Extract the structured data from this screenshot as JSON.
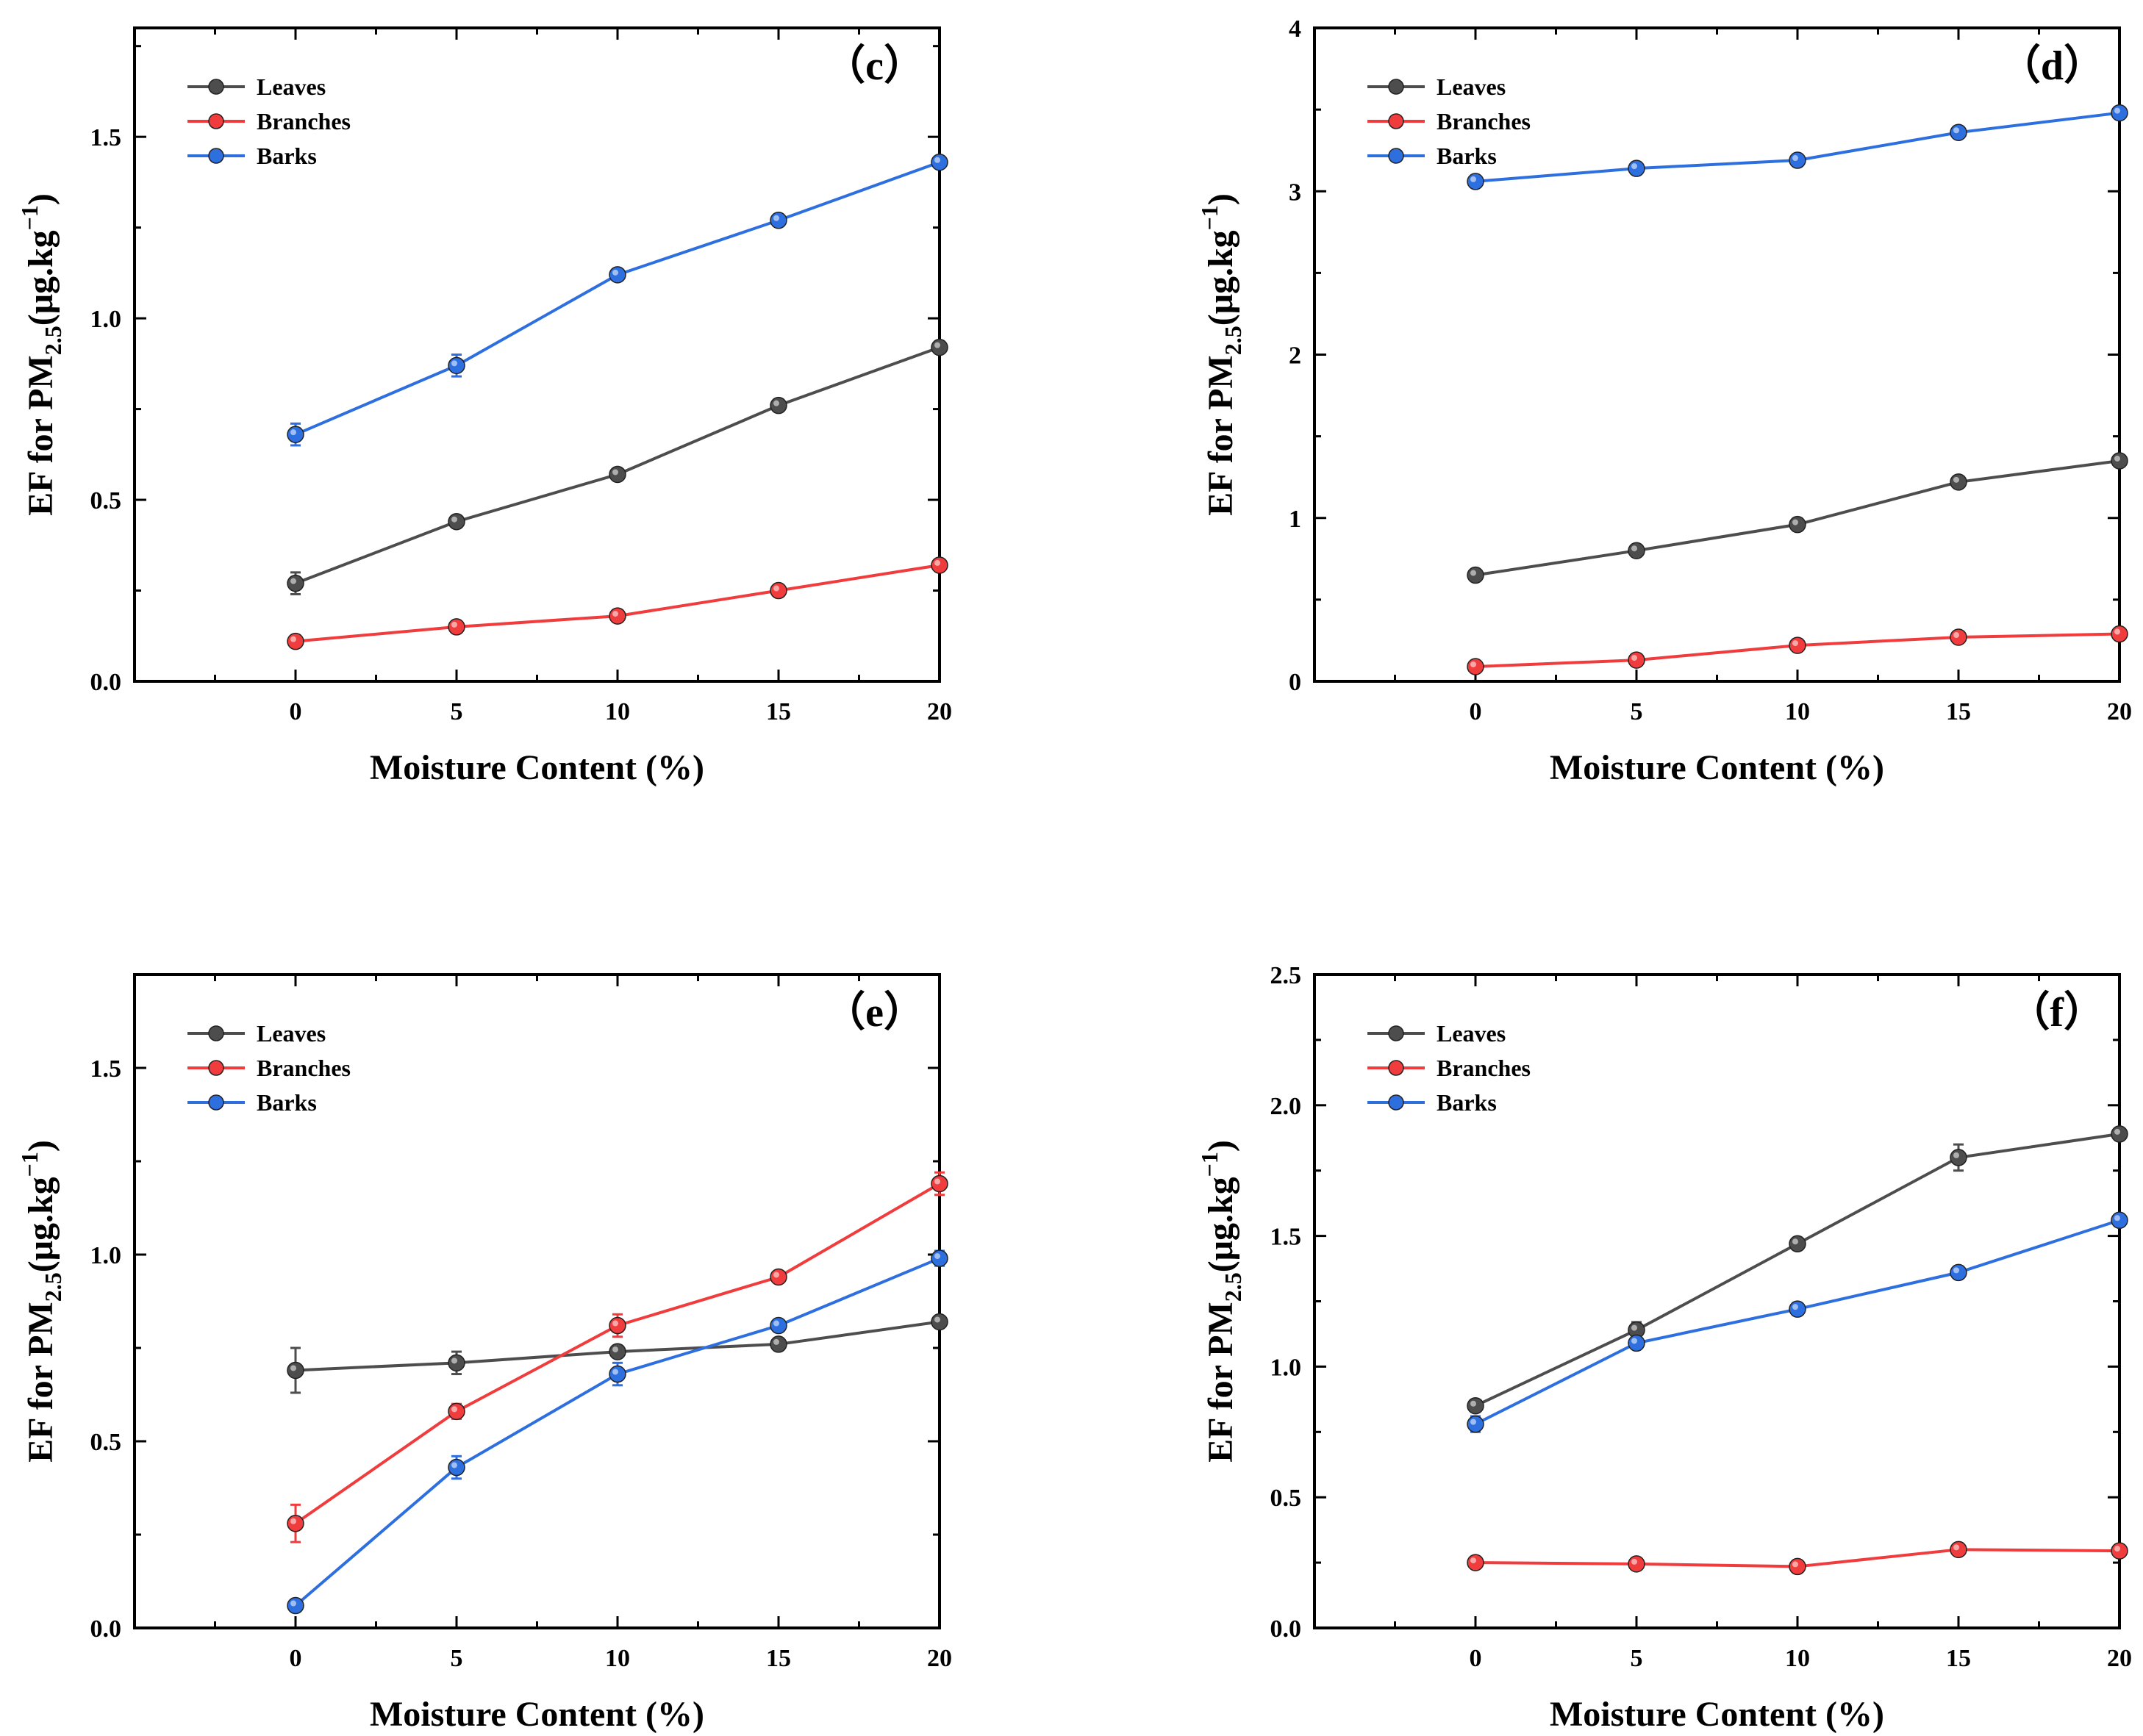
{
  "chart_data": [
    {
      "panel": "c",
      "panel_label": "（c）",
      "type": "line",
      "xlabel": "Moisture Content (%)",
      "ylabel": {
        "main": "EF for PM",
        "sub": "2.5",
        "unit": "(μg.kg",
        "sup": "−1",
        "close": ")"
      },
      "x": [
        0,
        5,
        10,
        15,
        20
      ],
      "xlim": [
        -5,
        20
      ],
      "ylim": [
        0,
        1.8
      ],
      "yticks": [
        0.0,
        0.5,
        1.0,
        1.5
      ],
      "ytick_labels": [
        "0.0",
        "0.5",
        "1.0",
        "1.5"
      ],
      "xticks": [
        0,
        5,
        10,
        15,
        20
      ],
      "xtick_labels": [
        "0",
        "5",
        "10",
        "15",
        "20"
      ],
      "legend_position": "top-left",
      "series": [
        {
          "name": "Leaves",
          "color": "#4d4d4d",
          "values": [
            0.27,
            0.44,
            0.57,
            0.76,
            0.92
          ],
          "errors": [
            0.03,
            0.01,
            0.01,
            0.01,
            0.01
          ]
        },
        {
          "name": "Branches",
          "color": "#f03c3c",
          "values": [
            0.11,
            0.15,
            0.18,
            0.25,
            0.32
          ],
          "errors": [
            0.01,
            0.01,
            0.01,
            0.01,
            0.01
          ]
        },
        {
          "name": "Barks",
          "color": "#2e6fe0",
          "values": [
            0.68,
            0.87,
            1.12,
            1.27,
            1.43
          ],
          "errors": [
            0.03,
            0.03,
            0.01,
            0.01,
            0.01
          ]
        }
      ]
    },
    {
      "panel": "d",
      "panel_label": "（d）",
      "type": "line",
      "xlabel": "Moisture Content (%)",
      "ylabel": {
        "main": "EF for PM",
        "sub": "2.5",
        "unit": "(μg.kg",
        "sup": "−1",
        "close": ")"
      },
      "x": [
        0,
        5,
        10,
        15,
        20
      ],
      "xlim": [
        -5,
        20
      ],
      "ylim": [
        0,
        4
      ],
      "yticks": [
        0,
        1,
        2,
        3,
        4
      ],
      "ytick_labels": [
        "0",
        "1",
        "2",
        "3",
        "4"
      ],
      "xticks": [
        0,
        5,
        10,
        15,
        20
      ],
      "xtick_labels": [
        "0",
        "5",
        "10",
        "15",
        "20"
      ],
      "legend_position": "top-left",
      "series": [
        {
          "name": "Leaves",
          "color": "#4d4d4d",
          "values": [
            0.65,
            0.8,
            0.96,
            1.22,
            1.35
          ],
          "errors": [
            0.02,
            0.02,
            0.02,
            0.02,
            0.02
          ]
        },
        {
          "name": "Branches",
          "color": "#f03c3c",
          "values": [
            0.09,
            0.13,
            0.22,
            0.27,
            0.29
          ],
          "errors": [
            0.01,
            0.01,
            0.01,
            0.01,
            0.01
          ]
        },
        {
          "name": "Barks",
          "color": "#2e6fe0",
          "values": [
            3.06,
            3.14,
            3.19,
            3.36,
            3.48
          ],
          "errors": [
            0.02,
            0.02,
            0.02,
            0.02,
            0.02
          ]
        }
      ]
    },
    {
      "panel": "e",
      "panel_label": "（e）",
      "type": "line",
      "xlabel": "Moisture Content (%)",
      "ylabel": {
        "main": "EF for PM",
        "sub": "2.5",
        "unit": "(μg.kg",
        "sup": "−1",
        "close": ")"
      },
      "x": [
        0,
        5,
        10,
        15,
        20
      ],
      "xlim": [
        -5,
        20
      ],
      "ylim": [
        0,
        1.75
      ],
      "yticks": [
        0.0,
        0.5,
        1.0,
        1.5
      ],
      "ytick_labels": [
        "0.0",
        "0.5",
        "1.0",
        "1.5"
      ],
      "xticks": [
        0,
        5,
        10,
        15,
        20
      ],
      "xtick_labels": [
        "0",
        "5",
        "10",
        "15",
        "20"
      ],
      "legend_position": "top-left",
      "series": [
        {
          "name": "Leaves",
          "color": "#4d4d4d",
          "values": [
            0.69,
            0.71,
            0.74,
            0.76,
            0.82
          ],
          "errors": [
            0.06,
            0.03,
            0.01,
            0.01,
            0.01
          ]
        },
        {
          "name": "Branches",
          "color": "#f03c3c",
          "values": [
            0.28,
            0.58,
            0.81,
            0.94,
            1.19
          ],
          "errors": [
            0.05,
            0.02,
            0.03,
            0.01,
            0.03
          ]
        },
        {
          "name": "Barks",
          "color": "#2e6fe0",
          "values": [
            0.06,
            0.43,
            0.68,
            0.81,
            0.99
          ],
          "errors": [
            0.01,
            0.03,
            0.03,
            0.01,
            0.02
          ]
        }
      ]
    },
    {
      "panel": "f",
      "panel_label": "（f）",
      "type": "line",
      "xlabel": "Moisture Content (%)",
      "ylabel": {
        "main": "EF for PM",
        "sub": "2.5",
        "unit": "(μg.kg",
        "sup": "−1",
        "close": ")"
      },
      "x": [
        0,
        5,
        10,
        15,
        20
      ],
      "xlim": [
        -5,
        20
      ],
      "ylim": [
        0,
        2.5
      ],
      "yticks": [
        0.0,
        0.5,
        1.0,
        1.5,
        2.0,
        2.5
      ],
      "ytick_labels": [
        "0.0",
        "0.5",
        "1.0",
        "1.5",
        "2.0",
        "2.5"
      ],
      "xticks": [
        0,
        5,
        10,
        15,
        20
      ],
      "xtick_labels": [
        "0",
        "5",
        "10",
        "15",
        "20"
      ],
      "legend_position": "top-left",
      "series": [
        {
          "name": "Leaves",
          "color": "#4d4d4d",
          "values": [
            0.85,
            1.14,
            1.47,
            1.8,
            1.89
          ],
          "errors": [
            0.02,
            0.03,
            0.02,
            0.05,
            0.02
          ]
        },
        {
          "name": "Branches",
          "color": "#f03c3c",
          "values": [
            0.25,
            0.245,
            0.235,
            0.3,
            0.295
          ],
          "errors": [
            0.01,
            0.01,
            0.01,
            0.01,
            0.01
          ]
        },
        {
          "name": "Barks",
          "color": "#2e6fe0",
          "values": [
            0.78,
            1.09,
            1.22,
            1.36,
            1.56
          ],
          "errors": [
            0.03,
            0.02,
            0.02,
            0.02,
            0.02
          ]
        }
      ]
    }
  ]
}
